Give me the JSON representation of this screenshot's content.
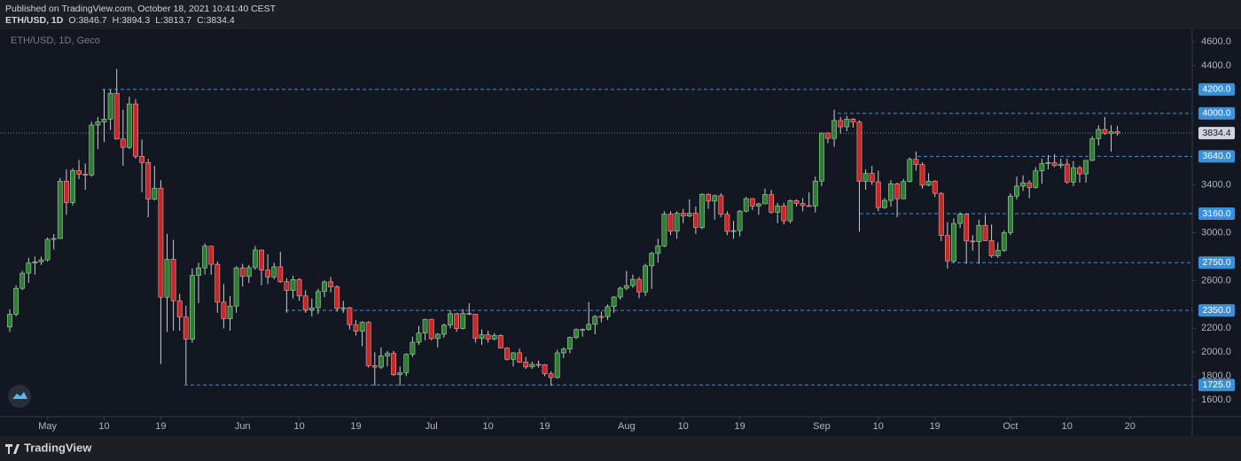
{
  "header": {
    "published": "Published on TradingView.com, October 18, 2021 10:41:40 CEST",
    "symbol": "ETH/USD, 1D",
    "ohlc_labels": [
      "O:",
      "H:",
      "L:",
      "C:"
    ]
  },
  "footer": {
    "brand": "TradingView"
  },
  "chart_data": {
    "type": "candlestick",
    "legend": "ETH/USD, 1D, Geco",
    "x": [
      "04-25",
      "04-26",
      "04-27",
      "04-28",
      "04-29",
      "04-30",
      "05-01",
      "05-02",
      "05-03",
      "05-04",
      "05-05",
      "05-06",
      "05-07",
      "05-08",
      "05-09",
      "05-10",
      "05-11",
      "05-12",
      "05-13",
      "05-14",
      "05-15",
      "05-16",
      "05-17",
      "05-18",
      "05-19",
      "05-20",
      "05-21",
      "05-22",
      "05-23",
      "05-24",
      "05-25",
      "05-26",
      "05-27",
      "05-28",
      "05-29",
      "05-30",
      "05-31",
      "06-01",
      "06-02",
      "06-03",
      "06-04",
      "06-05",
      "06-06",
      "06-07",
      "06-08",
      "06-09",
      "06-10",
      "06-11",
      "06-12",
      "06-13",
      "06-14",
      "06-15",
      "06-16",
      "06-17",
      "06-18",
      "06-19",
      "06-20",
      "06-21",
      "06-22",
      "06-23",
      "06-24",
      "06-25",
      "06-26",
      "06-27",
      "06-28",
      "06-29",
      "06-30",
      "07-01",
      "07-02",
      "07-03",
      "07-04",
      "07-05",
      "07-06",
      "07-07",
      "07-08",
      "07-09",
      "07-10",
      "07-11",
      "07-12",
      "07-13",
      "07-14",
      "07-15",
      "07-16",
      "07-17",
      "07-18",
      "07-19",
      "07-20",
      "07-21",
      "07-22",
      "07-23",
      "07-24",
      "07-25",
      "07-26",
      "07-27",
      "07-28",
      "07-29",
      "07-30",
      "07-31",
      "08-01",
      "08-02",
      "08-03",
      "08-04",
      "08-05",
      "08-06",
      "08-07",
      "08-08",
      "08-09",
      "08-10",
      "08-11",
      "08-12",
      "08-13",
      "08-14",
      "08-15",
      "08-16",
      "08-17",
      "08-18",
      "08-19",
      "08-20",
      "08-21",
      "08-22",
      "08-23",
      "08-24",
      "08-25",
      "08-26",
      "08-27",
      "08-28",
      "08-29",
      "08-30",
      "08-31",
      "09-01",
      "09-02",
      "09-03",
      "09-04",
      "09-05",
      "09-06",
      "09-07",
      "09-08",
      "09-09",
      "09-10",
      "09-11",
      "09-12",
      "09-13",
      "09-14",
      "09-15",
      "09-16",
      "09-17",
      "09-18",
      "09-19",
      "09-20",
      "09-21",
      "09-22",
      "09-23",
      "09-24",
      "09-25",
      "09-26",
      "09-27",
      "09-28",
      "09-29",
      "09-30",
      "10-01",
      "10-02",
      "10-03",
      "10-04",
      "10-05",
      "10-06",
      "10-07",
      "10-08",
      "10-09",
      "10-10",
      "10-11",
      "10-12",
      "10-13",
      "10-14",
      "10-15",
      "10-16",
      "10-17",
      "10-18"
    ],
    "open": [
      2211,
      2317,
      2535,
      2662,
      2747,
      2757,
      2773,
      2945,
      2952,
      3432,
      3253,
      3522,
      3490,
      3484,
      3902,
      3928,
      3952,
      4168,
      3785,
      3715,
      4079,
      3640,
      3588,
      3282,
      3374,
      2460,
      2778,
      2430,
      2295,
      2109,
      2643,
      2706,
      2888,
      2736,
      2419,
      2280,
      2386,
      2706,
      2634,
      2708,
      2855,
      2688,
      2630,
      2715,
      2590,
      2517,
      2608,
      2471,
      2353,
      2372,
      2508,
      2589,
      2547,
      2366,
      2372,
      2231,
      2176,
      2250,
      1887,
      1875,
      1969,
      1990,
      1812,
      1829,
      1982,
      2083,
      2160,
      2275,
      2114,
      2150,
      2226,
      2322,
      2198,
      2324,
      2318,
      2115,
      2146,
      2111,
      2140,
      2035,
      1940,
      1995,
      1917,
      1877,
      1898,
      1895,
      1820,
      1787,
      1994,
      2026,
      2124,
      2189,
      2191,
      2233,
      2299,
      2298,
      2382,
      2462,
      2536,
      2558,
      2610,
      2504,
      2723,
      2827,
      2890,
      3157,
      3013,
      3163,
      3141,
      3164,
      3045,
      3322,
      3265,
      3310,
      3155,
      3011,
      3018,
      3181,
      3286,
      3224,
      3242,
      3320,
      3172,
      3225,
      3100,
      3269,
      3245,
      3227,
      3224,
      3433,
      3835,
      3790,
      3940,
      3887,
      3952,
      3927,
      3430,
      3497,
      3427,
      3211,
      3271,
      3410,
      3285,
      3429,
      3615,
      3571,
      3398,
      3432,
      3330,
      2977,
      2764,
      3078,
      3155,
      2931,
      2925,
      3062,
      2934,
      2807,
      2853,
      3001,
      3307,
      3391,
      3418,
      3380,
      3518,
      3580,
      3587,
      3563,
      3575,
      3425,
      3545,
      3493,
      3606,
      3788,
      3865,
      3830,
      3846.7
    ],
    "high": [
      2360,
      2560,
      2680,
      2790,
      2800,
      2800,
      2960,
      2990,
      3460,
      3530,
      3540,
      3610,
      3580,
      3930,
      3970,
      4200,
      4200,
      4372,
      4030,
      4140,
      4120,
      3780,
      3620,
      3560,
      3440,
      2990,
      2940,
      2490,
      2390,
      2700,
      2750,
      2910,
      2890,
      2760,
      2570,
      2470,
      2720,
      2740,
      2730,
      2890,
      2860,
      2820,
      2750,
      2840,
      2620,
      2640,
      2620,
      2520,
      2450,
      2530,
      2600,
      2630,
      2560,
      2430,
      2380,
      2270,
      2260,
      2260,
      2000,
      2040,
      2010,
      2010,
      1880,
      1990,
      2130,
      2220,
      2280,
      2280,
      2160,
      2240,
      2350,
      2330,
      2360,
      2410,
      2320,
      2190,
      2180,
      2160,
      2150,
      2040,
      2000,
      2030,
      1960,
      1920,
      1930,
      1900,
      1840,
      2020,
      2040,
      2130,
      2200,
      2200,
      2420,
      2310,
      2340,
      2400,
      2470,
      2550,
      2680,
      2650,
      2630,
      2740,
      2840,
      2950,
      3180,
      3180,
      3180,
      3200,
      3280,
      3220,
      3330,
      3330,
      3320,
      3330,
      3180,
      3100,
      3190,
      3300,
      3290,
      3250,
      3370,
      3360,
      3250,
      3250,
      3280,
      3280,
      3290,
      3340,
      3470,
      3840,
      3840,
      4030,
      3970,
      3980,
      3960,
      3940,
      3530,
      3560,
      3520,
      3290,
      3440,
      3420,
      3450,
      3630,
      3680,
      3590,
      3500,
      3440,
      3340,
      3090,
      3120,
      3170,
      3160,
      2980,
      3110,
      3150,
      3070,
      2920,
      3020,
      3330,
      3470,
      3480,
      3440,
      3550,
      3620,
      3650,
      3660,
      3620,
      3620,
      3600,
      3560,
      3610,
      3810,
      3900,
      3970,
      3900,
      3894.3
    ],
    "low": [
      2170,
      2300,
      2520,
      2580,
      2650,
      2730,
      2760,
      2860,
      2950,
      3150,
      3230,
      3450,
      3360,
      3470,
      3700,
      3760,
      3860,
      3780,
      3560,
      3700,
      3620,
      3340,
      3130,
      3270,
      1900,
      2170,
      2180,
      2180,
      1730,
      2080,
      2410,
      2650,
      2650,
      2330,
      2200,
      2180,
      2330,
      2550,
      2580,
      2690,
      2560,
      2570,
      2610,
      2580,
      2330,
      2450,
      2430,
      2330,
      2300,
      2320,
      2460,
      2500,
      2340,
      2330,
      2190,
      2140,
      2050,
      1870,
      1720,
      1860,
      1880,
      1800,
      1720,
      1800,
      1960,
      2060,
      2100,
      2100,
      2040,
      2120,
      2200,
      2170,
      2190,
      2310,
      2080,
      2060,
      2080,
      2100,
      2030,
      1930,
      1880,
      1910,
      1860,
      1860,
      1870,
      1800,
      1720,
      1780,
      1950,
      1990,
      2110,
      2130,
      2180,
      2150,
      2250,
      2270,
      2330,
      2440,
      2520,
      2540,
      2450,
      2470,
      2530,
      2750,
      2880,
      2980,
      2950,
      3080,
      3130,
      2990,
      3030,
      3200,
      3110,
      3130,
      2980,
      2950,
      2970,
      3170,
      3190,
      3150,
      3240,
      3160,
      3080,
      3070,
      3080,
      3220,
      3180,
      3220,
      3170,
      3390,
      3750,
      3720,
      3830,
      3850,
      3880,
      3010,
      3360,
      3400,
      3180,
      3200,
      3220,
      3130,
      3280,
      3420,
      3520,
      3370,
      3390,
      3300,
      2930,
      2700,
      2750,
      3040,
      2740,
      2850,
      2740,
      2930,
      2790,
      2790,
      2840,
      2980,
      3280,
      3350,
      3290,
      3370,
      3410,
      3530,
      3550,
      3540,
      3410,
      3390,
      3420,
      3420,
      3600,
      3730,
      3820,
      3680,
      3813.7
    ],
    "close": [
      2317,
      2535,
      2662,
      2747,
      2757,
      2773,
      2945,
      2952,
      3432,
      3253,
      3522,
      3490,
      3484,
      3902,
      3928,
      3952,
      4168,
      3785,
      3715,
      4079,
      3640,
      3588,
      3282,
      3374,
      2460,
      2778,
      2430,
      2295,
      2109,
      2643,
      2706,
      2888,
      2736,
      2419,
      2280,
      2386,
      2706,
      2634,
      2708,
      2855,
      2688,
      2630,
      2715,
      2590,
      2517,
      2608,
      2471,
      2353,
      2372,
      2508,
      2589,
      2547,
      2366,
      2372,
      2231,
      2176,
      2250,
      1887,
      1875,
      1969,
      1990,
      1812,
      1829,
      1982,
      2083,
      2160,
      2275,
      2114,
      2150,
      2226,
      2322,
      2198,
      2324,
      2318,
      2115,
      2146,
      2111,
      2140,
      2035,
      1940,
      1995,
      1917,
      1877,
      1898,
      1895,
      1820,
      1787,
      1994,
      2026,
      2124,
      2189,
      2191,
      2233,
      2299,
      2298,
      2382,
      2462,
      2536,
      2558,
      2610,
      2504,
      2723,
      2827,
      2890,
      3157,
      3013,
      3163,
      3141,
      3164,
      3045,
      3322,
      3265,
      3310,
      3155,
      3011,
      3018,
      3181,
      3286,
      3224,
      3242,
      3320,
      3172,
      3225,
      3100,
      3269,
      3245,
      3227,
      3224,
      3433,
      3835,
      3790,
      3940,
      3887,
      3952,
      3927,
      3430,
      3497,
      3427,
      3211,
      3271,
      3410,
      3285,
      3429,
      3615,
      3571,
      3398,
      3432,
      3330,
      2977,
      2764,
      3078,
      3155,
      2931,
      2925,
      3062,
      2934,
      2807,
      2853,
      3001,
      3307,
      3391,
      3418,
      3380,
      3518,
      3580,
      3587,
      3563,
      3575,
      3425,
      3545,
      3493,
      3606,
      3788,
      3865,
      3830,
      3847,
      3834.4
    ],
    "ylim": [
      1460,
      4704
    ],
    "yticks": [
      {
        "value": 4600,
        "label": "4600.0"
      },
      {
        "value": 4400,
        "label": "4400.0"
      },
      {
        "value": 3400,
        "label": "3400.0"
      },
      {
        "value": 3000,
        "label": "3000.0"
      },
      {
        "value": 2600,
        "label": "2600.0"
      },
      {
        "value": 2200,
        "label": "2200.0"
      },
      {
        "value": 2000,
        "label": "2000.0"
      },
      {
        "value": 1800,
        "label": "1800.0"
      },
      {
        "value": 1600,
        "label": "1600.0"
      }
    ],
    "xticks": [
      {
        "value": "05-01",
        "label": "May"
      },
      {
        "value": "05-10",
        "label": "10"
      },
      {
        "value": "05-19",
        "label": "19"
      },
      {
        "value": "06-01",
        "label": "Jun"
      },
      {
        "value": "06-10",
        "label": "10"
      },
      {
        "value": "06-19",
        "label": "19"
      },
      {
        "value": "07-01",
        "label": "Jul"
      },
      {
        "value": "07-10",
        "label": "10"
      },
      {
        "value": "07-19",
        "label": "19"
      },
      {
        "value": "08-01",
        "label": "Aug"
      },
      {
        "value": "08-10",
        "label": "10"
      },
      {
        "value": "08-19",
        "label": "19"
      },
      {
        "value": "09-01",
        "label": "Sep"
      },
      {
        "value": "09-10",
        "label": "10"
      },
      {
        "value": "09-19",
        "label": "19"
      },
      {
        "value": "10-01",
        "label": "Oct"
      },
      {
        "value": "10-10",
        "label": "10"
      },
      {
        "value": "10-20",
        "label": "20"
      }
    ],
    "levels": [
      {
        "value": 4200,
        "label": "4200.0"
      },
      {
        "value": 4000,
        "label": "4000.0"
      },
      {
        "value": 3640,
        "label": "3640.0"
      },
      {
        "value": 3160,
        "label": "3160.0"
      },
      {
        "value": 2750,
        "label": "2750.0"
      },
      {
        "value": 2350,
        "label": "2350.0"
      },
      {
        "value": 1725,
        "label": "1725.0"
      }
    ],
    "up_color": "#2e7d32",
    "down_color": "#c62828",
    "wick_color": "#c8cad0",
    "level_color": "#3d8fd6",
    "last_price_color": "#787b86"
  }
}
